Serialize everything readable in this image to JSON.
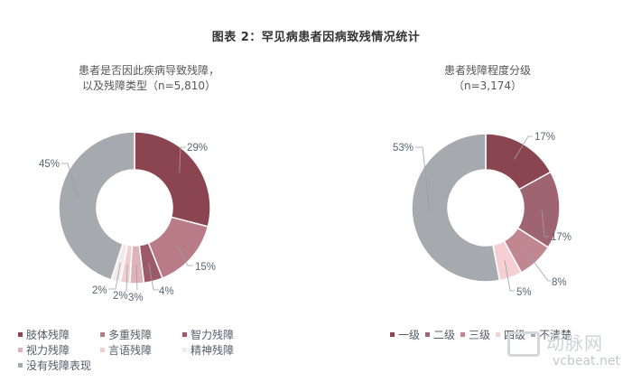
{
  "title": "图表 2：罕见病患者因病致残情况统计",
  "chart_data": [
    {
      "type": "pie",
      "variant": "donut",
      "title": "患者是否因此疾病导致残障，以及残障类型（n=5,810）",
      "title_lines": [
        "患者是否因此疾病导致残障，",
        "以及残障类型（n=5,810）"
      ],
      "categories": [
        "肢体残障",
        "多重残障",
        "智力残障",
        "视力残障",
        "言语残障",
        "精神残障",
        "没有残障表现"
      ],
      "values": [
        29,
        15,
        4,
        3,
        2,
        2,
        45
      ],
      "labels": [
        "29%",
        "15%",
        "4%",
        "3%",
        "2%",
        "2%",
        "45%"
      ],
      "colors": [
        "#8b4550",
        "#b97c86",
        "#9c5a68",
        "#ddb3b9",
        "#f0cfd2",
        "#f3eaea",
        "#a6aaae"
      ],
      "legend_position": "bottom",
      "unit": "%"
    },
    {
      "type": "pie",
      "variant": "donut",
      "title": "患者残障程度分级（n=3,174）",
      "title_lines": [
        "患者残障程度分级",
        "（n=3,174）"
      ],
      "categories": [
        "一级",
        "二级",
        "三级",
        "四级",
        "不清楚"
      ],
      "values": [
        17,
        17,
        8,
        5,
        53
      ],
      "labels": [
        "17%",
        "17%",
        "8%",
        "5%",
        "53%"
      ],
      "colors": [
        "#8b4550",
        "#9e6472",
        "#c08790",
        "#f5cfd2",
        "#a6aaae"
      ],
      "legend_position": "bottom",
      "unit": "%"
    }
  ],
  "watermark": {
    "cn": "动脉网",
    "en": "vcbeat.net"
  }
}
